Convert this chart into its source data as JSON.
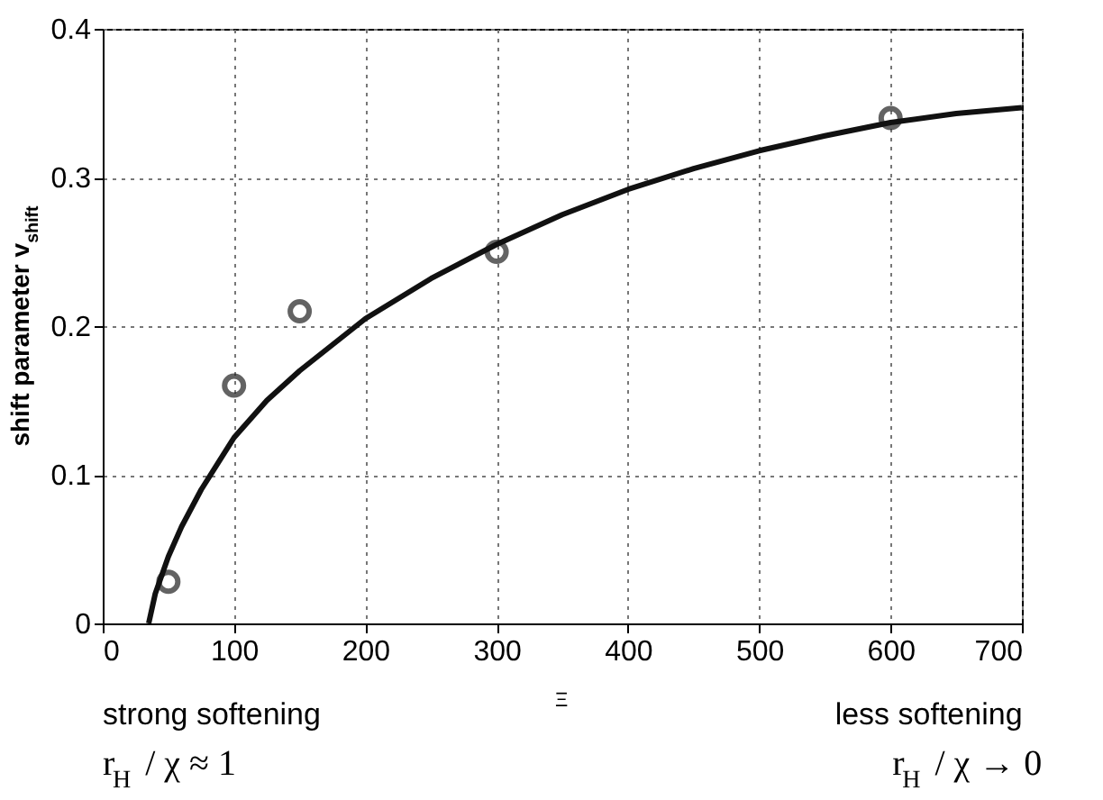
{
  "chart_data": {
    "type": "scatter",
    "xlabel": "Ξ",
    "ylabel": "shift parameter v$_{shift}$",
    "xlim": [
      0,
      700
    ],
    "xticks": [
      0,
      100,
      200,
      300,
      400,
      500,
      600,
      700
    ],
    "ylim": [
      0,
      0.4
    ],
    "yticks": [
      0,
      0.1,
      0.2,
      0.3,
      0.4
    ],
    "grid": true,
    "legend": false,
    "series": [
      {
        "marker": "circle",
        "color": "#222222",
        "x": [
          50,
          100,
          150,
          300,
          600
        ],
        "values": [
          0.028,
          0.16,
          0.21,
          0.25,
          0.34
        ]
      },
      {
        "type": "line",
        "line_style": "solid",
        "color": "#111111",
        "x": [
          35,
          40,
          50,
          60,
          75,
          100,
          125,
          150,
          200,
          250,
          300,
          350,
          400,
          450,
          500,
          550,
          600,
          650,
          700
        ],
        "values": [
          0,
          0.02,
          0.045,
          0.065,
          0.09,
          0.125,
          0.15,
          0.17,
          0.205,
          0.232,
          0.255,
          0.275,
          0.292,
          0.306,
          0.318,
          0.328,
          0.337,
          0.343,
          0.347
        ]
      }
    ],
    "annotations": [
      "strong softening",
      "r$_{H}$ / χ ≈ 1",
      "less softening",
      "r$_{H}$ / χ → 0"
    ]
  }
}
